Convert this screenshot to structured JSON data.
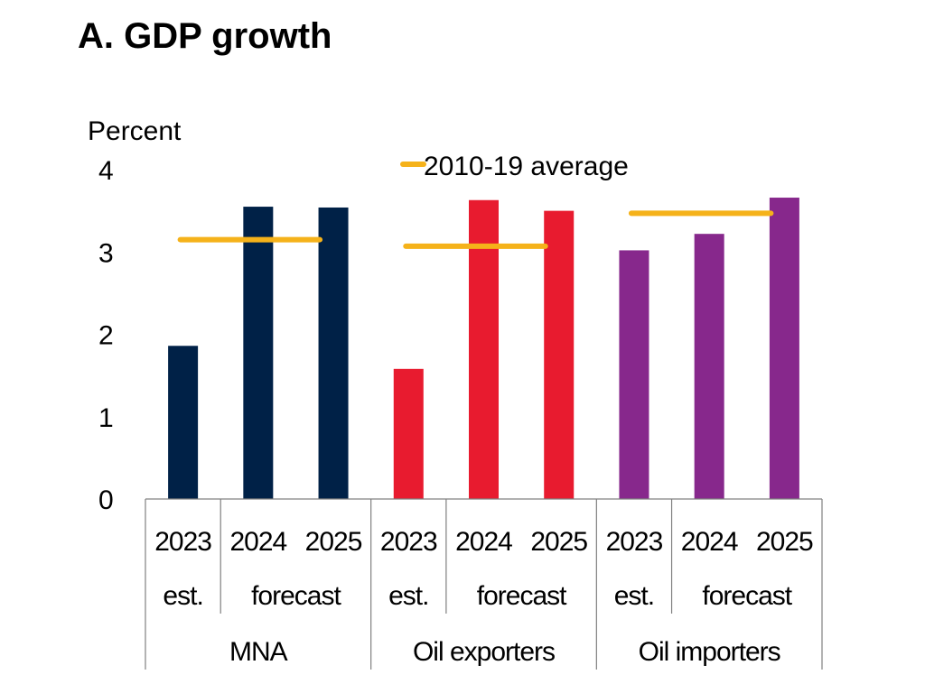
{
  "chart_data": {
    "type": "bar",
    "title": "A. GDP growth",
    "ylabel": "Percent",
    "xlabel": "",
    "ylim": [
      0,
      4
    ],
    "yticks": [
      "0",
      "1",
      "2",
      "3",
      "4"
    ],
    "grid": false,
    "legend": {
      "placement": "top-center",
      "entries": [
        {
          "label": "2010-19 average",
          "color": "#F5B21A",
          "marker": "line"
        }
      ]
    },
    "groups": [
      {
        "name": "MNA",
        "color": "#002147",
        "categories": [
          "2023",
          "2024",
          "2025"
        ],
        "subgroups": [
          {
            "label": "est.",
            "span": 1
          },
          {
            "label": "forecast",
            "span": 2
          }
        ],
        "values": [
          1.86,
          3.55,
          3.54
        ],
        "average_2010_19": 3.15
      },
      {
        "name": "Oil exporters",
        "color": "#E81B2F",
        "categories": [
          "2023",
          "2024",
          "2025"
        ],
        "subgroups": [
          {
            "label": "est.",
            "span": 1
          },
          {
            "label": "forecast",
            "span": 2
          }
        ],
        "values": [
          1.58,
          3.63,
          3.5
        ],
        "average_2010_19": 3.07
      },
      {
        "name": "Oil importers",
        "color": "#87288C",
        "categories": [
          "2023",
          "2024",
          "2025"
        ],
        "subgroups": [
          {
            "label": "est.",
            "span": 1
          },
          {
            "label": "forecast",
            "span": 2
          }
        ],
        "values": [
          3.02,
          3.22,
          3.66
        ],
        "average_2010_19": 3.47
      }
    ]
  }
}
